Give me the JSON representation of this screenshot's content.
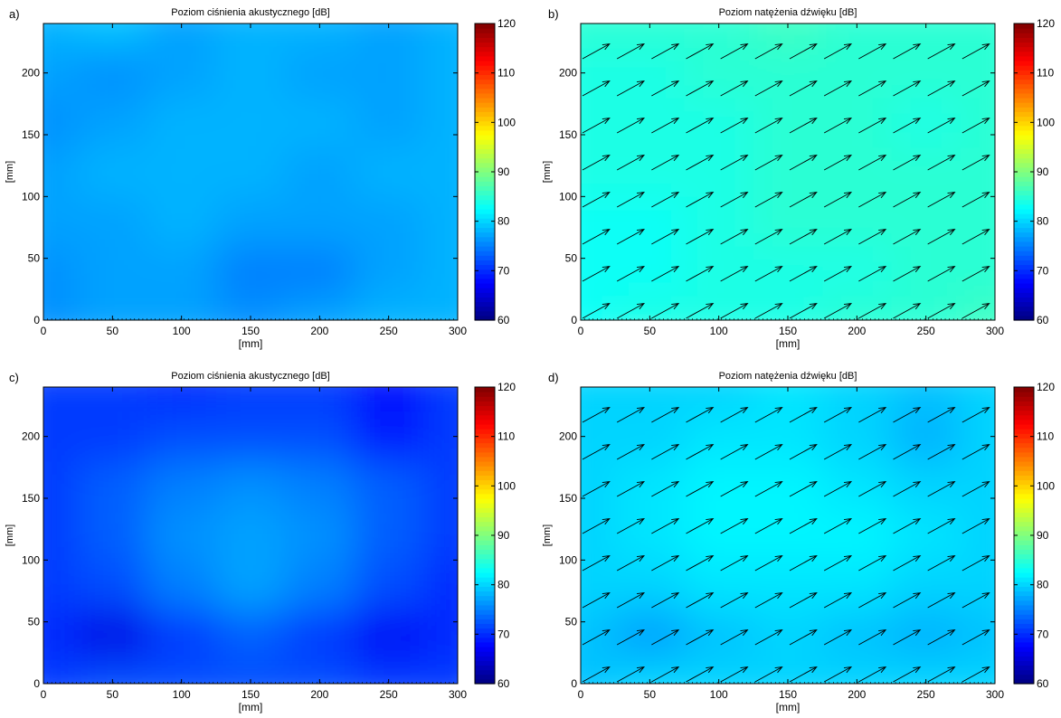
{
  "chart_data": [
    {
      "panel_label": "a)",
      "type": "heatmap",
      "title": "Poziom ciśnienia akustycznego [dB]",
      "xlabel": "[mm]",
      "ylabel": "[mm]",
      "xlim": [
        0,
        300
      ],
      "ylim": [
        0,
        240
      ],
      "xticks": [
        0,
        50,
        100,
        150,
        200,
        250,
        300
      ],
      "yticks": [
        0,
        50,
        100,
        150,
        200
      ],
      "colorbar": {
        "range": [
          60,
          120
        ],
        "ticks": [
          60,
          70,
          80,
          90,
          100,
          110,
          120
        ],
        "colormap": "jet"
      },
      "grid": {
        "x": [
          0,
          50,
          100,
          150,
          200,
          250,
          300
        ],
        "y": [
          0,
          40,
          80,
          120,
          160,
          200,
          240
        ],
        "values": [
          [
            76,
            77,
            77,
            76,
            77,
            78,
            78
          ],
          [
            76,
            77,
            77,
            75,
            75,
            77,
            78
          ],
          [
            77,
            77,
            78,
            77,
            77,
            77,
            78
          ],
          [
            77,
            78,
            78,
            78,
            77,
            78,
            78
          ],
          [
            76,
            77,
            78,
            78,
            78,
            77,
            78
          ],
          [
            77,
            76,
            77,
            78,
            77,
            77,
            78
          ],
          [
            78,
            79,
            77,
            78,
            78,
            77,
            78
          ]
        ]
      },
      "arrows": false
    },
    {
      "panel_label": "b)",
      "type": "heatmap",
      "title": "Poziom natężenia dźwięku [dB]",
      "xlabel": "[mm]",
      "ylabel": "[mm]",
      "xlim": [
        0,
        300
      ],
      "ylim": [
        0,
        240
      ],
      "xticks": [
        0,
        50,
        100,
        150,
        200,
        250,
        300
      ],
      "yticks": [
        0,
        50,
        100,
        150,
        200
      ],
      "colorbar": {
        "range": [
          60,
          120
        ],
        "ticks": [
          60,
          70,
          80,
          90,
          100,
          110,
          120
        ],
        "colormap": "jet"
      },
      "grid": {
        "x": [
          0,
          50,
          100,
          150,
          200,
          250,
          300
        ],
        "y": [
          0,
          40,
          80,
          120,
          160,
          200,
          240
        ],
        "values": [
          [
            83,
            84,
            84,
            84,
            85,
            85,
            86
          ],
          [
            83,
            83,
            84,
            84,
            84,
            85,
            85
          ],
          [
            83,
            83,
            84,
            85,
            85,
            85,
            85
          ],
          [
            84,
            84,
            84,
            85,
            85,
            85,
            85
          ],
          [
            84,
            84,
            84,
            85,
            85,
            84,
            85
          ],
          [
            84,
            84,
            85,
            85,
            85,
            85,
            85
          ],
          [
            85,
            85,
            85,
            86,
            85,
            85,
            85
          ]
        ]
      },
      "arrows": true,
      "arrow_direction": [
        1,
        0.55
      ]
    },
    {
      "panel_label": "c)",
      "type": "heatmap",
      "title": "Poziom ciśnienia akustycznego [dB]",
      "xlabel": "[mm]",
      "ylabel": "[mm]",
      "xlim": [
        0,
        300
      ],
      "ylim": [
        0,
        240
      ],
      "xticks": [
        0,
        50,
        100,
        150,
        200,
        250,
        300
      ],
      "yticks": [
        0,
        50,
        100,
        150,
        200
      ],
      "colorbar": {
        "range": [
          60,
          120
        ],
        "ticks": [
          60,
          70,
          80,
          90,
          100,
          110,
          120
        ],
        "colormap": "jet"
      },
      "grid": {
        "x": [
          0,
          50,
          100,
          150,
          200,
          250,
          300
        ],
        "y": [
          0,
          40,
          80,
          120,
          160,
          200,
          240
        ],
        "values": [
          [
            71,
            72,
            72,
            72,
            72,
            71,
            71
          ],
          [
            70,
            66,
            71,
            73,
            71,
            67,
            70
          ],
          [
            71,
            72,
            75,
            77,
            75,
            72,
            70
          ],
          [
            71,
            73,
            76,
            77,
            76,
            73,
            71
          ],
          [
            71,
            73,
            75,
            76,
            75,
            73,
            71
          ],
          [
            71,
            71,
            72,
            72,
            72,
            69,
            71
          ],
          [
            71,
            71,
            70,
            71,
            71,
            68,
            71
          ]
        ]
      },
      "arrows": false
    },
    {
      "panel_label": "d)",
      "type": "heatmap",
      "title": "Poziom natężenia dźwięku [dB]",
      "xlabel": "[mm]",
      "ylabel": "[mm]",
      "xlim": [
        0,
        300
      ],
      "ylim": [
        0,
        240
      ],
      "xticks": [
        0,
        50,
        100,
        150,
        200,
        250,
        300
      ],
      "yticks": [
        0,
        50,
        100,
        150,
        200
      ],
      "colorbar": {
        "range": [
          60,
          120
        ],
        "ticks": [
          60,
          70,
          80,
          90,
          100,
          110,
          120
        ],
        "colormap": "jet"
      },
      "grid": {
        "x": [
          0,
          50,
          100,
          150,
          200,
          250,
          300
        ],
        "y": [
          0,
          40,
          80,
          120,
          160,
          200,
          240
        ],
        "values": [
          [
            79,
            80,
            80,
            80,
            80,
            80,
            80
          ],
          [
            79,
            77,
            79,
            80,
            79,
            78,
            79
          ],
          [
            80,
            80,
            81,
            81,
            81,
            80,
            80
          ],
          [
            80,
            81,
            82,
            82,
            82,
            81,
            80
          ],
          [
            80,
            81,
            82,
            82,
            81,
            80,
            80
          ],
          [
            80,
            80,
            81,
            81,
            80,
            78,
            80
          ],
          [
            80,
            80,
            80,
            81,
            80,
            79,
            80
          ]
        ]
      },
      "arrows": true,
      "arrow_direction": [
        1,
        0.55
      ]
    }
  ]
}
